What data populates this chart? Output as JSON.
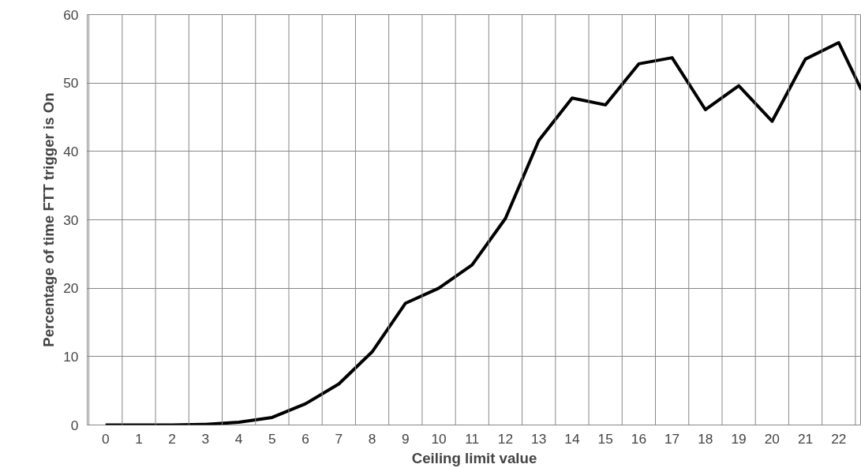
{
  "chart_data": {
    "type": "line",
    "xlabel": "Ceiling limit value",
    "ylabel": "Percentage of time FTT trigger is On",
    "x": [
      0,
      1,
      2,
      3,
      4,
      5,
      6,
      7,
      8,
      9,
      10,
      11,
      12,
      13,
      14,
      15,
      16,
      17,
      18,
      19,
      20,
      21,
      22,
      22.68
    ],
    "series": [
      {
        "color": "#000000",
        "values": [
          0,
          0,
          0,
          0.1,
          0.4,
          1.1,
          3.1,
          6,
          10.7,
          17.8,
          20,
          23.4,
          30.2,
          41.6,
          47.8,
          46.8,
          52.8,
          53.7,
          46.1,
          49.6,
          44.4,
          53.5,
          55.9,
          49
        ]
      }
    ],
    "xlim": [
      -0.55,
      22.68
    ],
    "ylim": [
      0,
      60
    ],
    "xticks": [
      0,
      1,
      2,
      3,
      4,
      5,
      6,
      7,
      8,
      9,
      10,
      11,
      12,
      13,
      14,
      15,
      16,
      17,
      18,
      19,
      20,
      21,
      22,
      {
        "value": -0.5,
        "label": null
      },
      {
        "value": 0.5,
        "label": null
      },
      {
        "value": 1.5,
        "label": null
      },
      {
        "value": 2.5,
        "label": null
      },
      {
        "value": 3.5,
        "label": null
      },
      {
        "value": 4.5,
        "label": null
      },
      {
        "value": 5.5,
        "label": null
      },
      {
        "value": 6.5,
        "label": null
      },
      {
        "value": 7.5,
        "label": null
      },
      {
        "value": 8.5,
        "label": null
      },
      {
        "value": 9.5,
        "label": null
      },
      {
        "value": 10.5,
        "label": null
      },
      {
        "value": 11.5,
        "label": null
      },
      {
        "value": 12.5,
        "label": null
      },
      {
        "value": 13.5,
        "label": null
      },
      {
        "value": 14.5,
        "label": null
      },
      {
        "value": 15.5,
        "label": null
      },
      {
        "value": 16.5,
        "label": null
      },
      {
        "value": 17.5,
        "label": null
      },
      {
        "value": 18.5,
        "label": null
      },
      {
        "value": 19.5,
        "label": null
      },
      {
        "value": 20.5,
        "label": null
      },
      {
        "value": 21.5,
        "label": null
      },
      {
        "value": 22.5,
        "label": null
      }
    ],
    "yticks": [
      0,
      10,
      20,
      30,
      40,
      50,
      60
    ],
    "grid": true,
    "marker": "none",
    "line_style": "solid"
  }
}
